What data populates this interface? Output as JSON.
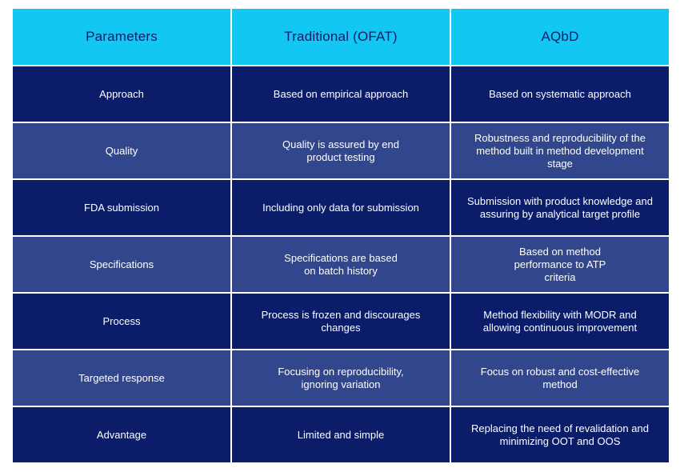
{
  "headers": [
    "Parameters",
    "Traditional (OFAT)",
    "AQbD"
  ],
  "rows": [
    {
      "parameter": "Approach",
      "traditional": "Based on empirical approach",
      "aqbd": "Based on systematic approach"
    },
    {
      "parameter": "Quality",
      "traditional": "Quality is assured by end product testing",
      "aqbd": "Robustness and reproducibility of the method built in method development stage"
    },
    {
      "parameter": "FDA submission",
      "traditional": "Including only data for submission",
      "aqbd": "Submission with product knowledge and assuring by analytical target profile"
    },
    {
      "parameter": "Specifications",
      "traditional": "Specifications are based on batch history",
      "aqbd": "Based on method performance to ATP criteria"
    },
    {
      "parameter": "Process",
      "traditional": "Process is frozen and discourages changes",
      "aqbd": "Method flexibility with MODR and allowing continuous improvement"
    },
    {
      "parameter": "Targeted response",
      "traditional": "Focusing on reproducibility, ignoring variation",
      "aqbd": "Focus on robust and cost-effective method"
    },
    {
      "parameter": "Advantage",
      "traditional": "Limited and simple",
      "aqbd": "Replacing the need of revalidation and minimizing OOT and OOS"
    }
  ],
  "colors": {
    "header_bg": "#12c8f2",
    "header_text": "#0e1c6b",
    "row_dark": "#0b1c68",
    "row_light": "#31468d"
  }
}
